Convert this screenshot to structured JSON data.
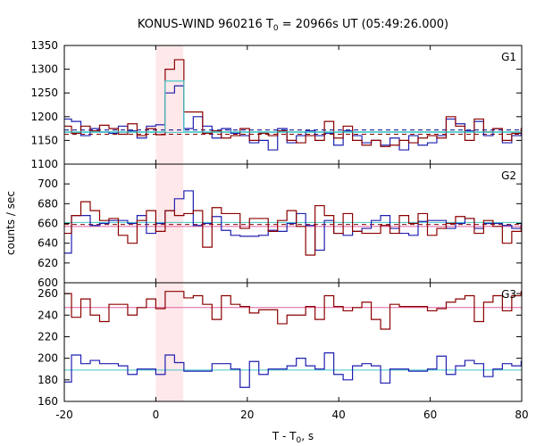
{
  "chart_data": {
    "type": "line",
    "title_main": "KONUS-WIND 960216 T",
    "title_sub": "0",
    "title_rest": " = 20966s UT (05:49:26.000)",
    "xlabel_main": "T - T",
    "xlabel_sub": "0",
    "xlabel_rest": ", s",
    "ylabel": "counts / sec",
    "xlim": [
      -20,
      80
    ],
    "x_ticks": [
      -20,
      0,
      20,
      40,
      60,
      80
    ],
    "x_tick_labels": [
      "-20",
      "0",
      "20",
      "40",
      "60",
      "80"
    ],
    "highlight_x": [
      0,
      6
    ],
    "bin_width": 2.048,
    "bin_start": -20.48,
    "panels": [
      {
        "label": "G1",
        "ylim": [
          1100,
          1350
        ],
        "yticks": [
          1100,
          1150,
          1200,
          1250,
          1300,
          1350
        ],
        "ytick_labels": [
          "1100",
          "1150",
          "1200",
          "1250",
          "1300",
          "1350"
        ],
        "backgrounds": [
          {
            "value": 1163,
            "color": "#8b0000",
            "dashed": true
          },
          {
            "value": 1172,
            "color": "#00008b",
            "dashed": true
          },
          {
            "value": 1167,
            "color": "#40c8c8",
            "dashed": false
          }
        ],
        "series": [
          {
            "color": "#1f1fb0",
            "values": [
              1195,
              1190,
              1160,
              1175,
              1168,
              1165,
              1180,
              1170,
              1155,
              1180,
              1183,
              1250,
              1265,
              1175,
              1200,
              1180,
              1155,
              1175,
              1165,
              1160,
              1145,
              1150,
              1130,
              1175,
              1145,
              1160,
              1170,
              1160,
              1165,
              1140,
              1170,
              1160,
              1145,
              1150,
              1140,
              1155,
              1130,
              1160,
              1140,
              1145,
              1160,
              1195,
              1185,
              1170,
              1190,
              1160,
              1175,
              1145,
              1160,
              1170
            ]
          },
          {
            "color": "#8b0000",
            "values": [
              1180,
              1165,
              1180,
              1170,
              1182,
              1175,
              1163,
              1185,
              1160,
              1175,
              1162,
              1300,
              1320,
              1210,
              1210,
              1165,
              1170,
              1155,
              1160,
              1175,
              1150,
              1165,
              1160,
              1170,
              1150,
              1145,
              1160,
              1150,
              1190,
              1155,
              1180,
              1150,
              1140,
              1150,
              1137,
              1140,
              1150,
              1145,
              1155,
              1160,
              1155,
              1200,
              1180,
              1150,
              1195,
              1168,
              1175,
              1150,
              1165,
              1175
            ]
          },
          {
            "color": "#40c8c8",
            "values": [
              1168,
              1168,
              1168,
              1168,
              1168,
              1168,
              1168,
              1168,
              1168,
              1168,
              1168,
              1275,
              1275,
              1168,
              1168,
              1168,
              1168,
              1168,
              1168,
              1168,
              1168,
              1168,
              1168,
              1168,
              1168,
              1168,
              1168,
              1168,
              1168,
              1168,
              1168,
              1168,
              1168,
              1168,
              1168,
              1168,
              1168,
              1168,
              1168,
              1168,
              1168,
              1168,
              1168,
              1168,
              1168,
              1168,
              1168,
              1168,
              1168,
              1168
            ]
          }
        ]
      },
      {
        "label": "G2",
        "ylim": [
          600,
          720
        ],
        "yticks": [
          600,
          620,
          640,
          660,
          680,
          700
        ],
        "ytick_labels": [
          "600",
          "620",
          "640",
          "660",
          "680",
          "700"
        ],
        "backgrounds": [
          {
            "value": 659,
            "color": "#8b0000",
            "dashed": true
          },
          {
            "value": 661,
            "color": "#40c8c8",
            "dashed": false
          },
          {
            "value": 657,
            "color": "#e060a0",
            "dashed": false
          }
        ],
        "series": [
          {
            "color": "#1f1fb0",
            "values": [
              630,
              668,
              668,
              658,
              660,
              663,
              663,
              660,
              668,
              650,
              660,
              673,
              685,
              693,
              658,
              660,
              667,
              653,
              648,
              647,
              647,
              648,
              653,
              652,
              660,
              670,
              658,
              633,
              663,
              650,
              648,
              652,
              655,
              663,
              668,
              655,
              650,
              648,
              662,
              663,
              663,
              655,
              660,
              665,
              655,
              660,
              660,
              658,
              655,
              660
            ]
          },
          {
            "color": "#8b0000",
            "values": [
              650,
              668,
              682,
              673,
              663,
              665,
              648,
              640,
              663,
              673,
              652,
              673,
              668,
              670,
              673,
              636,
              676,
              670,
              670,
              655,
              665,
              665,
              652,
              663,
              673,
              657,
              628,
              678,
              668,
              650,
              670,
              652,
              650,
              650,
              658,
              650,
              668,
              660,
              670,
              648,
              655,
              660,
              667,
              665,
              650,
              663,
              657,
              640,
              652,
              658
            ]
          }
        ]
      },
      {
        "label": "G3",
        "ylim": [
          160,
          270
        ],
        "yticks": [
          160,
          180,
          200,
          220,
          240,
          260
        ],
        "ytick_labels": [
          "160",
          "180",
          "200",
          "220",
          "240",
          "260"
        ],
        "backgrounds": [
          {
            "value": 247,
            "color": "#e060a0",
            "dashed": false
          },
          {
            "value": 189,
            "color": "#40c8c8",
            "dashed": false
          }
        ],
        "series": [
          {
            "color": "#8b0000",
            "values": [
              260,
              238,
              255,
              240,
              234,
              250,
              250,
              240,
              247,
              255,
              246,
              262,
              262,
              256,
              258,
              250,
              236,
              258,
              250,
              248,
              242,
              245,
              245,
              232,
              240,
              240,
              248,
              236,
              258,
              248,
              244,
              247,
              252,
              236,
              227,
              250,
              248,
              248,
              248,
              244,
              246,
              252,
              255,
              258,
              234,
              252,
              258,
              244,
              258,
              262
            ]
          },
          {
            "color": "#1f1fb0",
            "values": [
              178,
              203,
              195,
              198,
              195,
              195,
              193,
              185,
              190,
              190,
              185,
              203,
              196,
              188,
              188,
              188,
              195,
              195,
              190,
              173,
              197,
              185,
              190,
              190,
              193,
              200,
              193,
              190,
              205,
              185,
              180,
              193,
              195,
              193,
              177,
              190,
              190,
              188,
              188,
              190,
              202,
              185,
              193,
              198,
              195,
              183,
              190,
              195,
              193,
              197
            ]
          }
        ]
      }
    ]
  }
}
